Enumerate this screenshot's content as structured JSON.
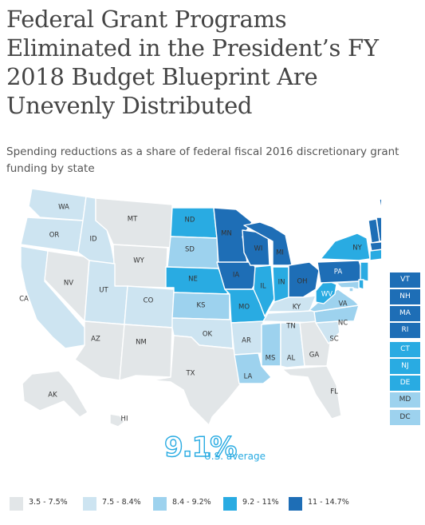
{
  "title": "Federal Grant Programs Eliminated in the President’s FY 2018 Budget Blueprint Are Unevenly Distributed",
  "subtitle": "Spending reductions as a share of federal fiscal 2016 discretionary grant funding by state",
  "palette": [
    "#e2e6e8",
    "#cde4f1",
    "#9dd2ee",
    "#29abe2",
    "#1e6eb6"
  ],
  "legend": [
    {
      "label": "3.5 - 7.5%",
      "bin": 0
    },
    {
      "label": "7.5 - 8.4%",
      "bin": 1
    },
    {
      "label": "8.4 - 9.2%",
      "bin": 2
    },
    {
      "label": "9.2 - 11%",
      "bin": 3
    },
    {
      "label": "11 - 14.7%",
      "bin": 4
    }
  ],
  "average": {
    "value": "9.1%",
    "label": "U.S. average"
  },
  "states": [
    {
      "abbr": "WA",
      "bin": 1
    },
    {
      "abbr": "OR",
      "bin": 1
    },
    {
      "abbr": "CA",
      "bin": 1
    },
    {
      "abbr": "ID",
      "bin": 1
    },
    {
      "abbr": "NV",
      "bin": 0
    },
    {
      "abbr": "MT",
      "bin": 0
    },
    {
      "abbr": "WY",
      "bin": 0
    },
    {
      "abbr": "UT",
      "bin": 1
    },
    {
      "abbr": "AZ",
      "bin": 0
    },
    {
      "abbr": "CO",
      "bin": 1
    },
    {
      "abbr": "NM",
      "bin": 0
    },
    {
      "abbr": "ND",
      "bin": 3
    },
    {
      "abbr": "SD",
      "bin": 2
    },
    {
      "abbr": "NE",
      "bin": 3
    },
    {
      "abbr": "KS",
      "bin": 2
    },
    {
      "abbr": "OK",
      "bin": 1
    },
    {
      "abbr": "TX",
      "bin": 0
    },
    {
      "abbr": "MN",
      "bin": 4
    },
    {
      "abbr": "IA",
      "bin": 4
    },
    {
      "abbr": "MO",
      "bin": 3
    },
    {
      "abbr": "AR",
      "bin": 1
    },
    {
      "abbr": "LA",
      "bin": 2
    },
    {
      "abbr": "WI",
      "bin": 4
    },
    {
      "abbr": "IL",
      "bin": 3
    },
    {
      "abbr": "MI",
      "bin": 4
    },
    {
      "abbr": "IN",
      "bin": 3
    },
    {
      "abbr": "OH",
      "bin": 4
    },
    {
      "abbr": "KY",
      "bin": 1
    },
    {
      "abbr": "TN",
      "bin": 1
    },
    {
      "abbr": "MS",
      "bin": 2
    },
    {
      "abbr": "AL",
      "bin": 1
    },
    {
      "abbr": "GA",
      "bin": 0
    },
    {
      "abbr": "FL",
      "bin": 0
    },
    {
      "abbr": "SC",
      "bin": 1
    },
    {
      "abbr": "NC",
      "bin": 2
    },
    {
      "abbr": "VA",
      "bin": 2
    },
    {
      "abbr": "WV",
      "bin": 3
    },
    {
      "abbr": "PA",
      "bin": 4
    },
    {
      "abbr": "NY",
      "bin": 3
    },
    {
      "abbr": "ME",
      "bin": 4
    },
    {
      "abbr": "AK",
      "bin": 0
    },
    {
      "abbr": "HI",
      "bin": 0
    },
    {
      "abbr": "VT",
      "bin": 4
    },
    {
      "abbr": "NH",
      "bin": 4
    },
    {
      "abbr": "MA",
      "bin": 4
    },
    {
      "abbr": "RI",
      "bin": 4
    },
    {
      "abbr": "CT",
      "bin": 3
    },
    {
      "abbr": "NJ",
      "bin": 3
    },
    {
      "abbr": "DE",
      "bin": 3
    },
    {
      "abbr": "MD",
      "bin": 2
    },
    {
      "abbr": "DC",
      "bin": 2
    }
  ]
}
